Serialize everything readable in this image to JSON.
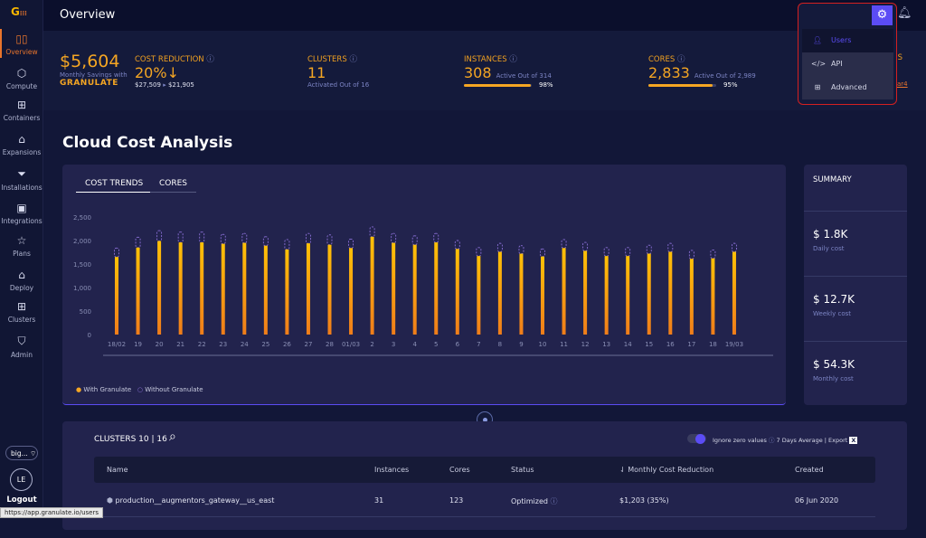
{
  "sidebar": {
    "items": [
      {
        "label": "Overview",
        "icon": "overview-icon",
        "glyph": "▯▯"
      },
      {
        "label": "Compute",
        "icon": "compute-icon",
        "glyph": "⬡"
      },
      {
        "label": "Containers",
        "icon": "containers-icon",
        "glyph": "⊞"
      },
      {
        "label": "Expansions",
        "icon": "expansions-icon",
        "glyph": "⌂"
      },
      {
        "label": "Installations",
        "icon": "installations-icon",
        "glyph": "⏷"
      },
      {
        "label": "Integrations",
        "icon": "integrations-icon",
        "glyph": "▣"
      },
      {
        "label": "Plans",
        "icon": "star-icon",
        "glyph": "☆"
      },
      {
        "label": "Deploy",
        "icon": "deploy-icon",
        "glyph": "⌂"
      },
      {
        "label": "Clusters",
        "icon": "clusters-icon",
        "glyph": "⊞"
      },
      {
        "label": "Admin",
        "icon": "admin-shield-icon",
        "glyph": "⛉"
      }
    ],
    "account": "big...",
    "avatar": "LE",
    "logout": "Logout"
  },
  "header": {
    "title": "Overview"
  },
  "settings_menu": {
    "items": [
      "Users",
      "API",
      "Advanced"
    ]
  },
  "stats": {
    "savings": "$5,604",
    "savings_sub": "Monthly Savings with",
    "brand": "GRANULATE",
    "cost_reduction": {
      "label": "COST REDUCTION",
      "value": "20%↓",
      "from": "$27,509",
      "to": "$21,905"
    },
    "clusters": {
      "label": "CLUSTERS",
      "value": "11",
      "sub": "Activated Out of 16"
    },
    "instances": {
      "label": "INSTANCES",
      "value": "308",
      "sub": "Active Out of 314",
      "pct": "98%",
      "fraction": 0.98
    },
    "cores": {
      "label": "CORES",
      "value": "2,833",
      "sub": "Active Out of 2,989",
      "pct": "95%",
      "fraction": 0.95
    },
    "partial_label": "GS",
    "partial_link": "ar4"
  },
  "section_title": "Cloud Cost Analysis",
  "tabs": [
    "COST TRENDS",
    "CORES"
  ],
  "chart_data": {
    "type": "bar",
    "ylim": [
      0,
      2500
    ],
    "yticks": [
      "0",
      "500",
      "1,000",
      "1,500",
      "2,000",
      "2,500"
    ],
    "categories": [
      "18/02",
      "19",
      "20",
      "21",
      "22",
      "23",
      "24",
      "25",
      "26",
      "27",
      "28",
      "01/03",
      "2",
      "3",
      "4",
      "5",
      "6",
      "7",
      "8",
      "9",
      "10",
      "11",
      "12",
      "13",
      "14",
      "15",
      "16",
      "17",
      "18",
      "19/03"
    ],
    "series": [
      {
        "name": "With Granulate",
        "color": "#f5a623",
        "values": [
          1650,
          1850,
          1990,
          1960,
          1960,
          1930,
          1950,
          1890,
          1810,
          1940,
          1910,
          1840,
          2080,
          1950,
          1910,
          1960,
          1820,
          1670,
          1760,
          1720,
          1660,
          1840,
          1780,
          1670,
          1670,
          1720,
          1760,
          1610,
          1620,
          1760
        ]
      },
      {
        "name": "Without Granulate",
        "color": "#8a6fd6",
        "values": [
          1840,
          2070,
          2210,
          2180,
          2180,
          2130,
          2150,
          2080,
          2020,
          2150,
          2120,
          2030,
          2290,
          2150,
          2100,
          2150,
          2000,
          1850,
          1940,
          1890,
          1820,
          2020,
          1960,
          1850,
          1850,
          1900,
          1940,
          1790,
          1800,
          1940
        ]
      }
    ],
    "legend": "bottom-left"
  },
  "summary": {
    "title": "SUMMARY",
    "rows": [
      {
        "value": "$ 1.8K",
        "label": "Daily cost"
      },
      {
        "value": "$ 12.7K",
        "label": "Weekly cost"
      },
      {
        "value": "$ 54.3K",
        "label": "Monthly cost"
      }
    ]
  },
  "clusters_table": {
    "title": "CLUSTERS 10 | 16",
    "toggle_label": "Ignore zero values",
    "average": "7 Days Average",
    "export": "Export",
    "columns": [
      "Name",
      "Instances",
      "Cores",
      "Status",
      "Monthly Cost Reduction",
      "Created"
    ],
    "rows": [
      {
        "name": "production__augmentors_gateway__us_east",
        "instances": "31",
        "cores": "123",
        "status": "Optimized",
        "reduction": "$1,203 (35%)",
        "created": "06 Jun 2020"
      }
    ]
  },
  "status_url": "https://app.granulate.io/users"
}
